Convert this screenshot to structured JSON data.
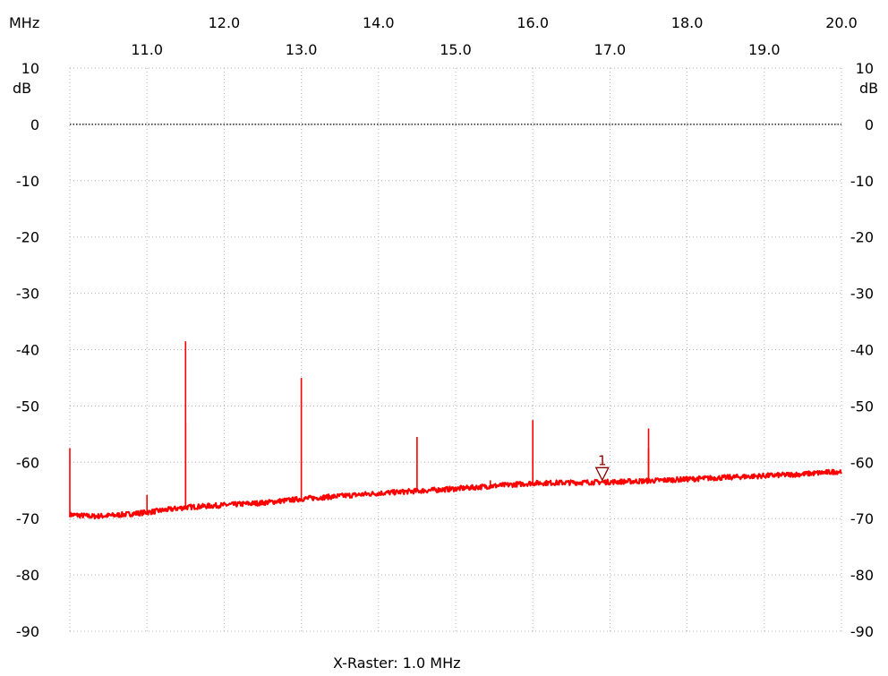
{
  "chart_data": {
    "type": "line",
    "title": "",
    "xlabel": "MHz",
    "ylabel": "dB",
    "x_unit": "MHz",
    "y_unit": "dB",
    "xlim": [
      10.0,
      20.0
    ],
    "ylim": [
      -90,
      10
    ],
    "grid": true,
    "x_ticks_top_row": [
      "12.0",
      "14.0",
      "16.0",
      "18.0",
      "20.0"
    ],
    "x_ticks_bottom_row": [
      "11.0",
      "13.0",
      "15.0",
      "17.0",
      "19.0"
    ],
    "y_ticks": [
      "10",
      "0",
      "-10",
      "-20",
      "-30",
      "-40",
      "-50",
      "-60",
      "-70",
      "-80",
      "-90"
    ],
    "reference_level": 0,
    "footer": "X-Raster: 1.0 MHz",
    "trace_color": "#ff0000",
    "marker": {
      "label": "1",
      "x": 16.9,
      "y": -63.5
    },
    "series": [
      {
        "baseline": [
          [
            10.0,
            -69.3
          ],
          [
            10.3,
            -69.6
          ],
          [
            10.6,
            -69.4
          ],
          [
            11.0,
            -68.9
          ],
          [
            11.5,
            -68.0
          ],
          [
            12.0,
            -67.6
          ],
          [
            12.5,
            -67.2
          ],
          [
            13.0,
            -66.5
          ],
          [
            13.5,
            -66.0
          ],
          [
            14.0,
            -65.5
          ],
          [
            14.5,
            -65.1
          ],
          [
            15.0,
            -64.7
          ],
          [
            15.5,
            -64.2
          ],
          [
            16.0,
            -63.7
          ],
          [
            16.5,
            -63.6
          ],
          [
            17.0,
            -63.5
          ],
          [
            17.5,
            -63.3
          ],
          [
            18.0,
            -63.0
          ],
          [
            18.5,
            -62.7
          ],
          [
            19.0,
            -62.4
          ],
          [
            19.5,
            -62.1
          ],
          [
            20.0,
            -61.6
          ]
        ],
        "spurs": [
          [
            10.0,
            -57.5
          ],
          [
            11.0,
            -65.8
          ],
          [
            11.5,
            -38.5
          ],
          [
            11.5,
            -53.0
          ],
          [
            13.0,
            -45.0
          ],
          [
            14.5,
            -55.5
          ],
          [
            15.45,
            -63.2
          ],
          [
            16.0,
            -52.5
          ],
          [
            17.5,
            -54.0
          ],
          [
            17.5,
            -57.5
          ]
        ]
      }
    ]
  }
}
